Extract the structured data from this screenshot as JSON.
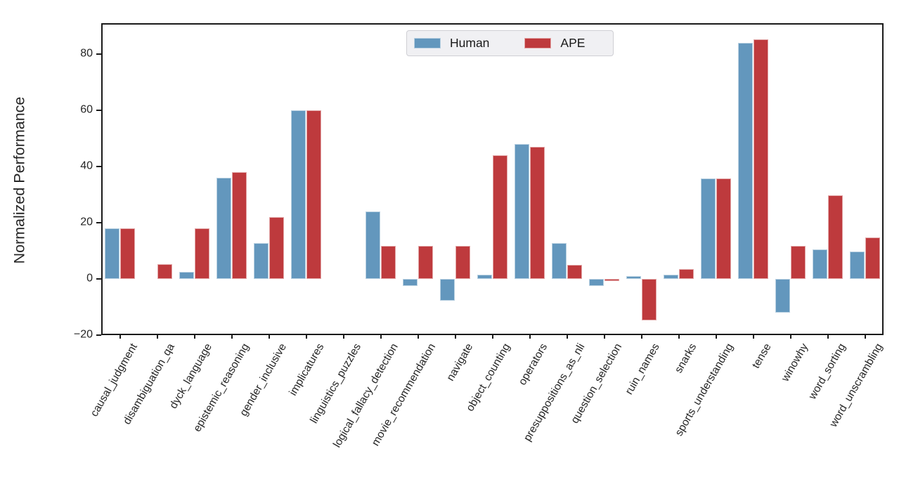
{
  "chart_data": {
    "type": "bar",
    "title": "",
    "xlabel": "",
    "ylabel": "Normalized Performance",
    "ylim": [
      -20.1,
      91.1
    ],
    "yticks": [
      -20,
      0,
      20,
      40,
      60,
      80
    ],
    "grid": false,
    "legend_position": "upper center",
    "categories": [
      "causal_judgment",
      "disambiguation_qa",
      "dyck_language",
      "epistemic_reasoning",
      "gender_inclusive",
      "implicatures",
      "linguistics_puzzles",
      "logical_fallacy_detection",
      "movie_recommendation",
      "navigate",
      "object_counting",
      "operators",
      "presuppositions_as_nli",
      "question_selection",
      "ruin_names",
      "snarks",
      "sports_understanding",
      "tense",
      "winowhy",
      "word_sorting",
      "word_unscrambling"
    ],
    "series": [
      {
        "name": "Human",
        "color": "#6397BD",
        "values": [
          17.9,
          0,
          2.5,
          35.9,
          12.7,
          60.1,
          0,
          24.0,
          -2.5,
          -7.9,
          1.5,
          48.0,
          12.7,
          -2.5,
          1.0,
          1.5,
          35.8,
          84.2,
          -12.1,
          10.4,
          9.6
        ]
      },
      {
        "name": "APE",
        "color": "#BE3A3D",
        "values": [
          17.9,
          5.3,
          17.9,
          38.0,
          21.9,
          60.1,
          0,
          11.7,
          11.7,
          11.7,
          44.1,
          47.0,
          5.0,
          -0.9,
          -14.9,
          3.5,
          35.8,
          85.4,
          11.7,
          29.7,
          14.8
        ]
      }
    ]
  }
}
